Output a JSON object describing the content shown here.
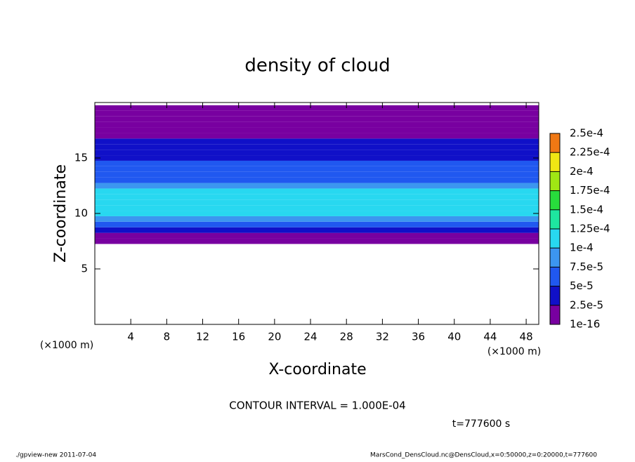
{
  "chart_data": {
    "type": "profile-contour",
    "title": "density of cloud",
    "x_label": "X-coordinate",
    "y_label": "Z-coordinate",
    "x_unit": "(×1000 m)",
    "y_unit": "(×1000 m)",
    "xlim": [
      0,
      49.4
    ],
    "xticks": [
      4,
      8,
      12,
      16,
      20,
      24,
      28,
      32,
      36,
      40,
      44,
      48
    ],
    "ylim": [
      0,
      20
    ],
    "yticks": [
      5,
      10,
      15
    ],
    "z": [
      7.5,
      8,
      8.5,
      9,
      9.5,
      10,
      10.5,
      11,
      11.5,
      12,
      12.5,
      13,
      13.5,
      14,
      14.5,
      15,
      15.5,
      16,
      16.5,
      17,
      17.5,
      18,
      18.5,
      19,
      19.5
    ],
    "values": [
      1e-06,
      1.5e-05,
      3e-05,
      5.5e-05,
      8e-05,
      0.0001,
      0.00011,
      0.000115,
      0.00011,
      0.0001,
      8.5e-05,
      7e-05,
      6e-05,
      5.5e-05,
      5e-05,
      4.5e-05,
      4e-05,
      3.5e-05,
      3e-05,
      2e-05,
      1e-05,
      5e-06,
      3e-06,
      1e-06,
      5e-07
    ],
    "levels": [
      1e-16,
      {
        "value": 2.5e-05,
        "label": "2.5e-5"
      },
      {
        "value": 5e-05,
        "label": "5e-5"
      },
      {
        "value": 7.5e-05,
        "label": "7.5e-5"
      },
      {
        "value": 0.0001,
        "label": "1e-4"
      },
      {
        "value": 0.000125,
        "label": "1.25e-4"
      },
      {
        "value": 0.00015,
        "label": "1.5e-4"
      },
      {
        "value": 0.000175,
        "label": "1.75e-4"
      },
      {
        "value": 0.0002,
        "label": "2e-4"
      },
      {
        "value": 0.000225,
        "label": "2.25e-4"
      },
      {
        "value": 0.00025,
        "label": "2.5e-4"
      }
    ],
    "level_colors": [
      "#7800a0",
      "#1010c8",
      "#2058f0",
      "#3c96f0",
      "#28d8f0",
      "#1ee6a0",
      "#28dc3c",
      "#a0e614",
      "#f0e614",
      "#f07814"
    ],
    "contour_note": "CONTOUR INTERVAL = 1.000E-04",
    "time_note": "t=777600 s",
    "footer_left": "./gpview-new  2011-07-04",
    "footer_right": "MarsCond_DensCloud.nc@DensCloud,x=0:50000,z=0:20000,t=777600"
  }
}
